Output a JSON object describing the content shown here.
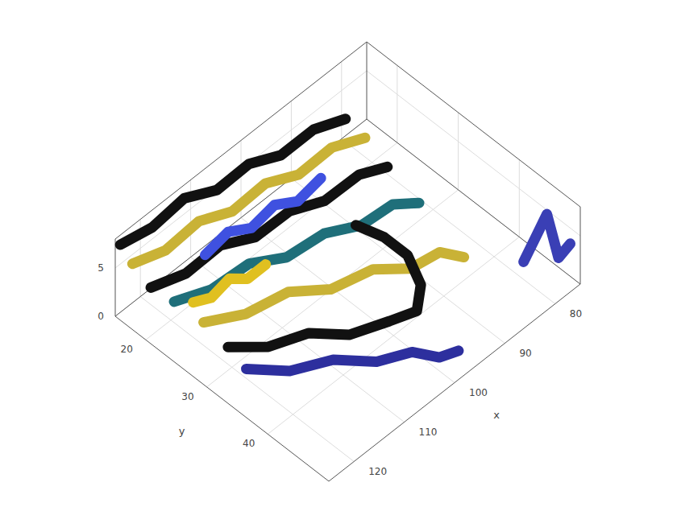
{
  "chart_data": {
    "type": "ribbon3d",
    "x_label": "x",
    "y_label": "y",
    "xlim": [
      75,
      125
    ],
    "xticks": [
      80,
      90,
      100,
      110,
      120
    ],
    "ylim": [
      15,
      50
    ],
    "yticks": [
      20,
      30,
      40
    ],
    "zlim": [
      0,
      8
    ],
    "zticks": [
      0,
      5
    ],
    "grid": true,
    "series": [
      {
        "color": "#111111",
        "x": [
          124,
          118,
          112,
          106,
          100,
          94,
          88,
          82
        ],
        "y": [
          15,
          15.3,
          15.6,
          16,
          16.3,
          16.6,
          17,
          17.3
        ],
        "z": [
          7,
          6.5,
          7.2,
          5.8,
          6.2,
          4.8,
          5.2,
          4
        ]
      },
      {
        "color": "#c9b236",
        "x": [
          124,
          118,
          112,
          106,
          100,
          94,
          88,
          82
        ],
        "y": [
          17,
          17.5,
          18,
          18.5,
          19,
          19.5,
          20,
          20.5
        ],
        "z": [
          6,
          5.2,
          6,
          4.8,
          5.5,
          4.2,
          4.8,
          3.6
        ]
      },
      {
        "color": "#111111",
        "x": [
          124,
          118,
          112,
          106,
          100,
          94,
          88,
          83
        ],
        "y": [
          20,
          20.8,
          21.5,
          22.3,
          23,
          23.8,
          24.5,
          25
        ],
        "z": [
          5,
          4.4,
          5.2,
          4,
          4.6,
          3.6,
          4.2,
          3.2
        ]
      },
      {
        "color": "#1f6f7a",
        "x": [
          123,
          117,
          111,
          105,
          99,
          93,
          88,
          84
        ],
        "y": [
          23,
          24.2,
          25.4,
          26.6,
          27.8,
          29,
          30,
          31
        ],
        "z": [
          4.6,
          4,
          4.8,
          3.6,
          4.2,
          3.2,
          3.8,
          2.8
        ]
      },
      {
        "color": "#c9b236",
        "x": [
          122,
          116,
          110,
          104,
          98,
          93,
          89,
          86
        ],
        "y": [
          27,
          29,
          31,
          33,
          35,
          37,
          38.5,
          40
        ],
        "z": [
          4,
          3.4,
          4.2,
          3,
          3.6,
          2.6,
          3.4,
          2.4
        ]
      },
      {
        "color": "#111111",
        "x": [
          122,
          117,
          112,
          107,
          102,
          99,
          97,
          96,
          97,
          99
        ],
        "y": [
          31,
          33.5,
          36,
          38.5,
          41,
          43,
          42,
          39,
          36,
          33
        ],
        "z": [
          3.4,
          2.6,
          3.2,
          2.2,
          2.8,
          3.6,
          5,
          6.2,
          7,
          7.6
        ]
      },
      {
        "color": "#2d2f9e",
        "x": [
          122,
          117,
          112,
          107,
          103,
          100,
          98
        ],
        "y": [
          34,
          37,
          40,
          43,
          45.5,
          47.5,
          49
        ],
        "z": [
          2.6,
          1.8,
          2.4,
          1.6,
          2.2,
          1.4,
          2
        ]
      },
      {
        "color": "#3a3fb5",
        "x": [
          79,
          78.5,
          78,
          77.5,
          77
        ],
        "y": [
          44,
          45.5,
          47,
          48.5,
          50
        ],
        "z": [
          1,
          4,
          7,
          3,
          5
        ]
      },
      {
        "color": "#3f51e0",
        "x": [
          112,
          108,
          104,
          100,
          96,
          92
        ],
        "y": [
          19,
          19.5,
          20,
          20.5,
          21,
          21.5
        ],
        "z": [
          3,
          4,
          3,
          4,
          3,
          4
        ]
      },
      {
        "color": "#e0c020",
        "x": [
          118,
          115,
          112,
          109,
          106
        ],
        "y": [
          22,
          22.5,
          23,
          23.5,
          24
        ],
        "z": [
          2,
          1.5,
          2.5,
          1.5,
          2
        ]
      }
    ]
  }
}
